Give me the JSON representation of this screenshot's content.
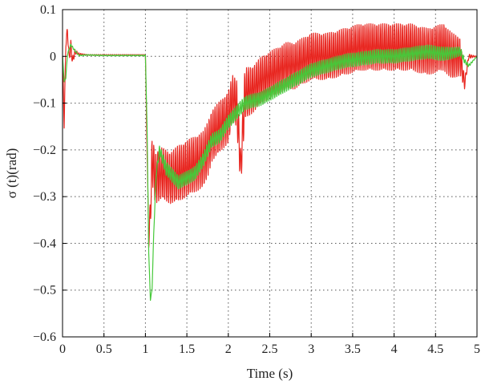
{
  "chart_data": {
    "type": "line",
    "xlabel": "Time (s)",
    "ylabel": "σ (t)(rad)",
    "xlim": [
      0,
      5
    ],
    "ylim": [
      -0.6,
      0.1
    ],
    "xticks": [
      0,
      0.5,
      1,
      1.5,
      2,
      2.5,
      3,
      3.5,
      4,
      4.5,
      5
    ],
    "xtick_labels": [
      "0",
      "0.5",
      "1",
      "1.5",
      "2",
      "2.5",
      "3",
      "3.5",
      "4",
      "4.5",
      "5"
    ],
    "yticks": [
      0.1,
      0,
      -0.1,
      -0.2,
      -0.3,
      -0.4,
      -0.5,
      -0.6
    ],
    "ytick_labels": [
      "0.1",
      "0",
      "−0.1",
      "−0.2",
      "−0.3",
      "−0.4",
      "−0.5",
      "−0.6"
    ],
    "grid": true,
    "legend": "none",
    "series": [
      {
        "color": "#e8251f",
        "x": [
          0,
          0.02,
          0.04,
          0.06,
          0.08,
          0.1,
          0.12,
          0.15,
          0.2,
          0.3,
          0.5,
          0.8,
          1.0,
          1.02,
          1.04,
          1.06,
          1.08,
          1.12,
          1.2,
          1.3,
          1.4,
          1.5,
          1.6,
          1.7,
          1.75,
          1.8,
          1.85,
          1.9,
          1.95,
          2.0,
          2.05,
          2.1,
          2.15,
          2.2,
          2.3,
          2.4,
          2.5,
          2.6,
          2.7,
          2.8,
          3.0,
          3.2,
          3.4,
          3.6,
          3.8,
          4.0,
          4.2,
          4.4,
          4.6,
          4.7,
          4.8,
          4.85,
          4.9,
          5.0
        ],
        "y": [
          0,
          -0.145,
          0.03,
          0.055,
          -0.005,
          0.025,
          -0.01,
          0.01,
          0.005,
          0.003,
          0.003,
          0.003,
          0.003,
          -0.2,
          -0.4,
          -0.33,
          -0.22,
          -0.26,
          -0.25,
          -0.26,
          -0.25,
          -0.24,
          -0.23,
          -0.22,
          -0.2,
          -0.17,
          -0.16,
          -0.15,
          -0.14,
          -0.13,
          -0.09,
          -0.1,
          -0.24,
          -0.08,
          -0.07,
          -0.05,
          -0.04,
          -0.03,
          -0.02,
          -0.02,
          0.0,
          0.0,
          0.01,
          0.02,
          0.02,
          0.02,
          0.02,
          0.01,
          0.02,
          0.0,
          0.0,
          -0.06,
          0.0,
          0.0
        ],
        "band": [
          0,
          0.01,
          0.01,
          0.01,
          0.01,
          0.01,
          0.01,
          0.005,
          0.002,
          0.001,
          0.001,
          0.001,
          0.001,
          0.01,
          0.01,
          0.04,
          0.05,
          0.055,
          0.055,
          0.055,
          0.06,
          0.06,
          0.06,
          0.06,
          0.06,
          0.055,
          0.055,
          0.055,
          0.055,
          0.055,
          0.05,
          0.05,
          0.04,
          0.055,
          0.05,
          0.05,
          0.05,
          0.05,
          0.05,
          0.05,
          0.05,
          0.05,
          0.05,
          0.05,
          0.05,
          0.05,
          0.05,
          0.05,
          0.05,
          0.05,
          0.04,
          0.01,
          0.005,
          0.0
        ]
      },
      {
        "color": "#46c93a",
        "x": [
          0,
          0.02,
          0.04,
          0.06,
          0.1,
          0.15,
          0.2,
          0.3,
          0.5,
          0.9,
          1.0,
          1.02,
          1.04,
          1.06,
          1.08,
          1.1,
          1.13,
          1.17,
          1.25,
          1.4,
          1.6,
          1.7,
          1.8,
          1.9,
          2.0,
          2.1,
          2.2,
          2.4,
          2.6,
          2.8,
          3.0,
          3.2,
          3.4,
          3.6,
          3.8,
          4.0,
          4.2,
          4.4,
          4.6,
          4.8,
          4.85,
          4.9,
          5.0
        ],
        "y": [
          0,
          -0.055,
          -0.045,
          0.005,
          0.025,
          0.012,
          0.002,
          0.003,
          0.002,
          0.002,
          0.002,
          -0.15,
          -0.42,
          -0.52,
          -0.5,
          -0.38,
          -0.25,
          -0.2,
          -0.24,
          -0.27,
          -0.25,
          -0.22,
          -0.18,
          -0.17,
          -0.14,
          -0.12,
          -0.1,
          -0.09,
          -0.07,
          -0.05,
          -0.03,
          -0.02,
          -0.01,
          -0.005,
          0.0,
          0.0,
          0.005,
          0.01,
          0.005,
          0.01,
          -0.01,
          -0.02,
          0.0
        ],
        "band": [
          0,
          0.002,
          0.002,
          0.002,
          0.002,
          0.002,
          0.001,
          0.001,
          0.001,
          0.001,
          0.001,
          0.002,
          0.002,
          0.002,
          0.002,
          0.002,
          0.005,
          0.01,
          0.015,
          0.015,
          0.015,
          0.015,
          0.015,
          0.015,
          0.015,
          0.015,
          0.015,
          0.015,
          0.015,
          0.015,
          0.015,
          0.015,
          0.015,
          0.015,
          0.015,
          0.015,
          0.015,
          0.015,
          0.015,
          0.01,
          0.005,
          0.003,
          0.0
        ]
      }
    ]
  }
}
